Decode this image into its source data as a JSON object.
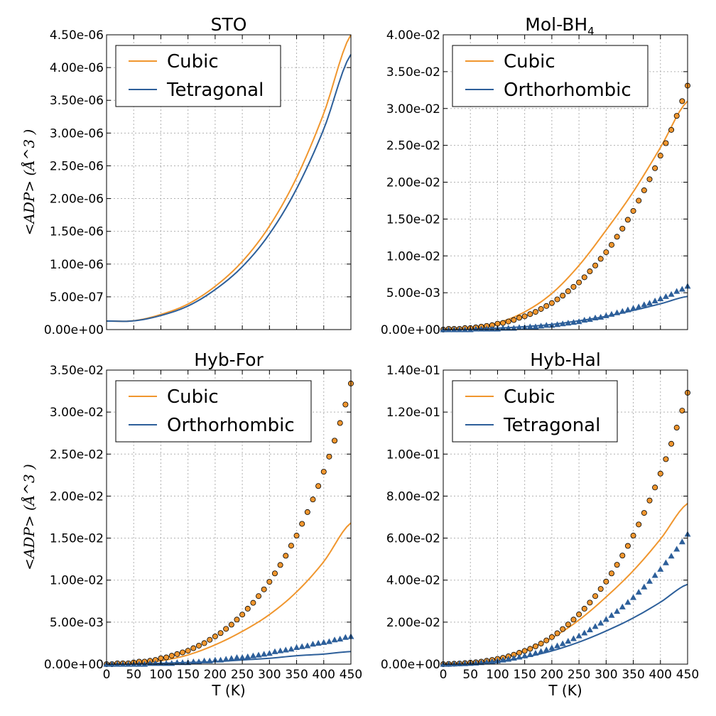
{
  "chart_data": [
    {
      "type": "line+scatter",
      "title": "STO",
      "title_sub": "",
      "xlabel": "",
      "ylabel": "<ADP> (Å^3 )",
      "xlim": [
        0,
        450
      ],
      "ylim": [
        0,
        4.5e-06
      ],
      "xticks": [],
      "yticks": [
        "0.00e+00",
        "5.00e-07",
        "1.00e-06",
        "1.50e-06",
        "2.00e-06",
        "2.50e-06",
        "3.00e-06",
        "3.50e-06",
        "4.00e-06",
        "4.50e-06"
      ],
      "legend": [
        "Cubic",
        "Tetragonal"
      ],
      "legend_position": "upper-left",
      "lines": [
        {
          "name": "Cubic",
          "color": "#f0962e",
          "x": [
            0,
            50,
            100,
            150,
            200,
            250,
            300,
            350,
            400,
            450
          ],
          "y": [
            1.3e-07,
            1.35e-07,
            2.3e-07,
            3.9e-07,
            6.6e-07,
            1.04e-06,
            1.58e-06,
            2.32e-06,
            3.3e-06,
            4.5e-06
          ]
        },
        {
          "name": "Tetragonal",
          "color": "#2d5f9a",
          "x": [
            0,
            50,
            100,
            150,
            200,
            250,
            300,
            350,
            400,
            450
          ],
          "y": [
            1.3e-07,
            1.33e-07,
            2.15e-07,
            3.6e-07,
            6.1e-07,
            9.6e-07,
            1.46e-06,
            2.15e-06,
            3.06e-06,
            4.2e-06
          ]
        }
      ],
      "circles": {
        "x": [],
        "y": []
      },
      "triangles": {
        "x": [],
        "y": []
      }
    },
    {
      "type": "line+scatter",
      "title": "Mol-BH",
      "title_sub": "4",
      "xlabel": "",
      "ylabel": "",
      "xlim": [
        0,
        450
      ],
      "ylim": [
        0,
        0.04
      ],
      "xticks": [],
      "yticks": [
        "0.00e+00",
        "5.00e-03",
        "1.00e-02",
        "1.50e-02",
        "2.00e-02",
        "2.50e-02",
        "3.00e-02",
        "3.50e-02",
        "4.00e-02"
      ],
      "legend": [
        "Cubic",
        "Orthorhombic"
      ],
      "legend_position": "upper-left",
      "lines": [
        {
          "name": "Cubic",
          "color": "#f0962e",
          "x": [
            0,
            50,
            100,
            150,
            200,
            250,
            300,
            350,
            400,
            450
          ],
          "y": [
            0.0,
            0.0002,
            0.0009,
            0.0024,
            0.0049,
            0.0087,
            0.0135,
            0.0187,
            0.0247,
            0.031
          ]
        },
        {
          "name": "Orthorhombic",
          "color": "#2d5f9a",
          "x": [
            0,
            50,
            100,
            150,
            200,
            250,
            300,
            350,
            400,
            450
          ],
          "y": [
            0.0,
            0.0001,
            0.0002,
            0.0004,
            0.0007,
            0.0012,
            0.0018,
            0.0026,
            0.0035,
            0.0045
          ]
        }
      ],
      "circles": {
        "x": [
          0,
          10,
          20,
          30,
          40,
          50,
          60,
          70,
          80,
          90,
          100,
          110,
          120,
          130,
          140,
          150,
          160,
          170,
          180,
          190,
          200,
          210,
          220,
          230,
          240,
          250,
          260,
          270,
          280,
          290,
          300,
          310,
          320,
          330,
          340,
          350,
          360,
          370,
          380,
          390,
          400,
          410,
          420,
          430,
          440,
          450
        ],
        "y": [
          0.0,
          0.0001,
          0.0001,
          0.0001,
          0.0002,
          0.0002,
          0.0003,
          0.0004,
          0.0005,
          0.0006,
          0.0008,
          0.0009,
          0.0011,
          0.0013,
          0.0016,
          0.0018,
          0.0021,
          0.0024,
          0.0028,
          0.0032,
          0.0036,
          0.0041,
          0.0046,
          0.0052,
          0.0058,
          0.0064,
          0.0071,
          0.0079,
          0.0087,
          0.0096,
          0.0105,
          0.0115,
          0.0126,
          0.0137,
          0.0149,
          0.0161,
          0.0175,
          0.0189,
          0.0204,
          0.0219,
          0.0236,
          0.0253,
          0.0271,
          0.029,
          0.031,
          0.0331
        ]
      },
      "triangles": {
        "x": [
          0,
          10,
          20,
          30,
          40,
          50,
          60,
          70,
          80,
          90,
          100,
          110,
          120,
          130,
          140,
          150,
          160,
          170,
          180,
          190,
          200,
          210,
          220,
          230,
          240,
          250,
          260,
          270,
          280,
          290,
          300,
          310,
          320,
          330,
          340,
          350,
          360,
          370,
          380,
          390,
          400,
          410,
          420,
          430,
          440,
          450
        ],
        "y": [
          0.0,
          0.0,
          0.0,
          0.0,
          0.0,
          0.0,
          0.0001,
          0.0001,
          0.0001,
          0.0001,
          0.0001,
          0.0002,
          0.0002,
          0.0002,
          0.0003,
          0.0003,
          0.0004,
          0.0004,
          0.0005,
          0.0006,
          0.0006,
          0.0007,
          0.0008,
          0.0009,
          0.001,
          0.0011,
          0.0013,
          0.0014,
          0.0016,
          0.0017,
          0.0019,
          0.0021,
          0.0023,
          0.0025,
          0.0027,
          0.0029,
          0.0031,
          0.0034,
          0.0036,
          0.0039,
          0.0042,
          0.0045,
          0.0048,
          0.0052,
          0.0055,
          0.0059
        ]
      }
    },
    {
      "type": "line+scatter",
      "title": "Hyb-For",
      "title_sub": "",
      "xlabel": "T (K)",
      "ylabel": "<ADP> (Å^3 )",
      "xlim": [
        0,
        450
      ],
      "ylim": [
        0,
        0.035
      ],
      "xticks": [
        "0",
        "50",
        "100",
        "150",
        "200",
        "250",
        "300",
        "350",
        "400",
        "450"
      ],
      "yticks": [
        "0.00e+00",
        "5.00e-03",
        "1.00e-02",
        "1.50e-02",
        "2.00e-02",
        "2.50e-02",
        "3.00e-02",
        "3.50e-02"
      ],
      "legend": [
        "Cubic",
        "Orthorhombic"
      ],
      "legend_position": "upper-left",
      "lines": [
        {
          "name": "Cubic",
          "color": "#f0962e",
          "x": [
            0,
            50,
            100,
            150,
            200,
            250,
            300,
            350,
            400,
            450
          ],
          "y": [
            0.0,
            0.0001,
            0.0004,
            0.0011,
            0.0023,
            0.0039,
            0.0059,
            0.0086,
            0.0122,
            0.0168
          ]
        },
        {
          "name": "Orthorhombic",
          "color": "#2d5f9a",
          "x": [
            0,
            50,
            100,
            150,
            200,
            250,
            300,
            350,
            400,
            450
          ],
          "y": [
            0.0,
            0.0,
            0.0001,
            0.0002,
            0.0003,
            0.0005,
            0.0007,
            0.001,
            0.0012,
            0.0015
          ]
        }
      ],
      "circles": {
        "x": [
          0,
          10,
          20,
          30,
          40,
          50,
          60,
          70,
          80,
          90,
          100,
          110,
          120,
          130,
          140,
          150,
          160,
          170,
          180,
          190,
          200,
          210,
          220,
          230,
          240,
          250,
          260,
          270,
          280,
          290,
          300,
          310,
          320,
          330,
          340,
          350,
          360,
          370,
          380,
          390,
          400,
          410,
          420,
          430,
          440,
          450
        ],
        "y": [
          0.0,
          0.0,
          0.0001,
          0.0001,
          0.0001,
          0.0002,
          0.0003,
          0.0003,
          0.0004,
          0.0005,
          0.0007,
          0.0008,
          0.001,
          0.0012,
          0.0014,
          0.0016,
          0.0019,
          0.0022,
          0.0025,
          0.0029,
          0.0033,
          0.0037,
          0.0042,
          0.0047,
          0.0053,
          0.0059,
          0.0066,
          0.0073,
          0.0081,
          0.0089,
          0.0098,
          0.0108,
          0.0118,
          0.0129,
          0.0141,
          0.0153,
          0.0167,
          0.0181,
          0.0196,
          0.0212,
          0.0229,
          0.0247,
          0.0266,
          0.0287,
          0.0309,
          0.0334
        ]
      },
      "triangles": {
        "x": [
          0,
          10,
          20,
          30,
          40,
          50,
          60,
          70,
          80,
          90,
          100,
          110,
          120,
          130,
          140,
          150,
          160,
          170,
          180,
          190,
          200,
          210,
          220,
          230,
          240,
          250,
          260,
          270,
          280,
          290,
          300,
          310,
          320,
          330,
          340,
          350,
          360,
          370,
          380,
          390,
          400,
          410,
          420,
          430,
          440,
          450
        ],
        "y": [
          0.0,
          0.0,
          0.0,
          0.0,
          0.0,
          0.0,
          0.0,
          0.0,
          0.0001,
          0.0001,
          0.0001,
          0.0001,
          0.0001,
          0.0002,
          0.0002,
          0.0002,
          0.0003,
          0.0003,
          0.0004,
          0.0004,
          0.0005,
          0.0005,
          0.0006,
          0.0007,
          0.0008,
          0.0008,
          0.0009,
          0.001,
          0.0011,
          0.0012,
          0.0013,
          0.0015,
          0.0016,
          0.0017,
          0.0018,
          0.002,
          0.0021,
          0.0022,
          0.0024,
          0.0025,
          0.0026,
          0.0027,
          0.0029,
          0.003,
          0.0032,
          0.0033
        ]
      }
    },
    {
      "type": "line+scatter",
      "title": "Hyb-Hal",
      "title_sub": "",
      "xlabel": "T (K)",
      "ylabel": "",
      "xlim": [
        0,
        450
      ],
      "ylim": [
        0,
        0.14
      ],
      "xticks": [
        "0",
        "50",
        "100",
        "150",
        "200",
        "250",
        "300",
        "350",
        "400",
        "450"
      ],
      "yticks": [
        "0.00e+00",
        "2.00e-02",
        "4.00e-02",
        "6.00e-02",
        "8.00e-02",
        "1.00e-01",
        "1.20e-01",
        "1.40e-01"
      ],
      "legend": [
        "Cubic",
        "Tetragonal"
      ],
      "legend_position": "upper-left",
      "lines": [
        {
          "name": "Cubic",
          "color": "#f0962e",
          "x": [
            0,
            50,
            100,
            150,
            200,
            250,
            300,
            350,
            400,
            450
          ],
          "y": [
            0.0,
            0.0005,
            0.0026,
            0.0065,
            0.0125,
            0.021,
            0.032,
            0.0445,
            0.0595,
            0.0765
          ]
        },
        {
          "name": "Tetragonal",
          "color": "#2d5f9a",
          "x": [
            0,
            50,
            100,
            150,
            200,
            250,
            300,
            350,
            400,
            450
          ],
          "y": [
            0.0,
            0.0003,
            0.0013,
            0.0033,
            0.0063,
            0.0105,
            0.0158,
            0.022,
            0.0295,
            0.038
          ]
        }
      ],
      "circles": {
        "x": [
          0,
          10,
          20,
          30,
          40,
          50,
          60,
          70,
          80,
          90,
          100,
          110,
          120,
          130,
          140,
          150,
          160,
          170,
          180,
          190,
          200,
          210,
          220,
          230,
          240,
          250,
          260,
          270,
          280,
          290,
          300,
          310,
          320,
          330,
          340,
          350,
          360,
          370,
          380,
          390,
          400,
          410,
          420,
          430,
          440,
          450
        ],
        "y": [
          0.0,
          0.0001,
          0.0002,
          0.0003,
          0.0005,
          0.0007,
          0.0009,
          0.0012,
          0.0016,
          0.002,
          0.0025,
          0.003,
          0.0037,
          0.0045,
          0.0054,
          0.0063,
          0.0073,
          0.0085,
          0.0098,
          0.0113,
          0.0129,
          0.0147,
          0.0167,
          0.0189,
          0.0212,
          0.0237,
          0.0264,
          0.0293,
          0.0324,
          0.0358,
          0.0393,
          0.0432,
          0.0473,
          0.0517,
          0.0563,
          0.0612,
          0.0665,
          0.072,
          0.0779,
          0.0841,
          0.0907,
          0.0976,
          0.1049,
          0.1126,
          0.1207,
          0.1292
        ]
      },
      "triangles": {
        "x": [
          0,
          10,
          20,
          30,
          40,
          50,
          60,
          70,
          80,
          90,
          100,
          110,
          120,
          130,
          140,
          150,
          160,
          170,
          180,
          190,
          200,
          210,
          220,
          230,
          240,
          250,
          260,
          270,
          280,
          290,
          300,
          310,
          320,
          330,
          340,
          350,
          360,
          370,
          380,
          390,
          400,
          410,
          420,
          430,
          440,
          450
        ],
        "y": [
          0.0,
          0.0,
          0.0001,
          0.0002,
          0.0003,
          0.0004,
          0.0006,
          0.0008,
          0.001,
          0.0013,
          0.0016,
          0.002,
          0.0024,
          0.0029,
          0.0034,
          0.004,
          0.0046,
          0.0053,
          0.0061,
          0.0069,
          0.0078,
          0.0088,
          0.0098,
          0.011,
          0.0122,
          0.0135,
          0.0149,
          0.0164,
          0.018,
          0.0196,
          0.0214,
          0.0233,
          0.0252,
          0.0273,
          0.0295,
          0.0318,
          0.0343,
          0.0368,
          0.0395,
          0.0423,
          0.0452,
          0.0483,
          0.0515,
          0.0548,
          0.0583,
          0.0619
        ]
      }
    }
  ]
}
